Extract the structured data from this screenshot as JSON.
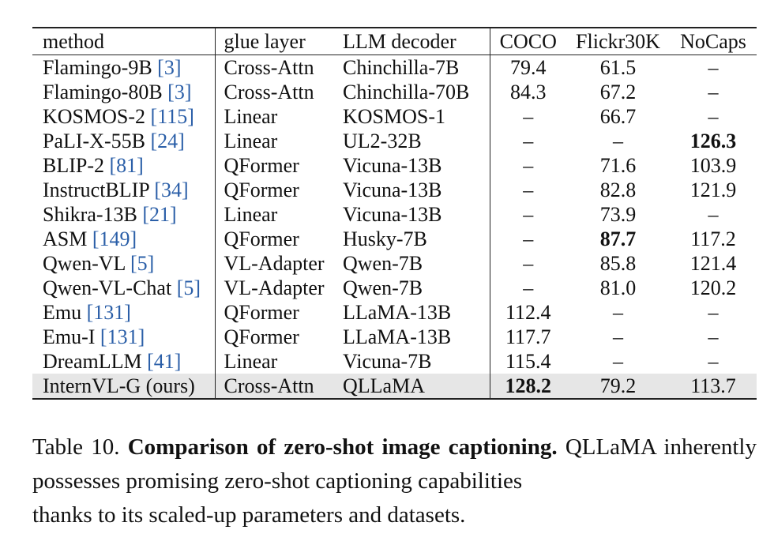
{
  "table": {
    "headers": {
      "method": "method",
      "glue_layer": "glue layer",
      "llm_decoder": "LLM decoder",
      "coco": "COCO",
      "flickr": "Flickr30K",
      "nocaps": "NoCaps"
    },
    "rows": [
      {
        "method": "Flamingo-9B",
        "ref": "[3]",
        "glue": "Cross-Attn",
        "llm": "Chinchilla-7B",
        "coco": "79.4",
        "flickr": "61.5",
        "nocaps": "–"
      },
      {
        "method": "Flamingo-80B",
        "ref": "[3]",
        "glue": "Cross-Attn",
        "llm": "Chinchilla-70B",
        "coco": "84.3",
        "flickr": "67.2",
        "nocaps": "–"
      },
      {
        "method": "KOSMOS-2",
        "ref": "[115]",
        "glue": "Linear",
        "llm": "KOSMOS-1",
        "coco": "–",
        "flickr": "66.7",
        "nocaps": "–"
      },
      {
        "method": "PaLI-X-55B",
        "ref": "[24]",
        "glue": "Linear",
        "llm": "UL2-32B",
        "coco": "–",
        "flickr": "–",
        "nocaps": "126.3"
      },
      {
        "method": "BLIP-2",
        "ref": "[81]",
        "glue": "QFormer",
        "llm": "Vicuna-13B",
        "coco": "–",
        "flickr": "71.6",
        "nocaps": "103.9"
      },
      {
        "method": "InstructBLIP",
        "ref": "[34]",
        "glue": "QFormer",
        "llm": "Vicuna-13B",
        "coco": "–",
        "flickr": "82.8",
        "nocaps": "121.9"
      },
      {
        "method": "Shikra-13B",
        "ref": "[21]",
        "glue": "Linear",
        "llm": "Vicuna-13B",
        "coco": "–",
        "flickr": "73.9",
        "nocaps": "–"
      },
      {
        "method": "ASM",
        "ref": "[149]",
        "glue": "QFormer",
        "llm": "Husky-7B",
        "coco": "–",
        "flickr": "87.7",
        "nocaps": "117.2"
      },
      {
        "method": "Qwen-VL",
        "ref": "[5]",
        "glue": "VL-Adapter",
        "llm": "Qwen-7B",
        "coco": "–",
        "flickr": "85.8",
        "nocaps": "121.4"
      },
      {
        "method": "Qwen-VL-Chat",
        "ref": "[5]",
        "glue": "VL-Adapter",
        "llm": "Qwen-7B",
        "coco": "–",
        "flickr": "81.0",
        "nocaps": "120.2"
      },
      {
        "method": "Emu",
        "ref": "[131]",
        "glue": "QFormer",
        "llm": "LLaMA-13B",
        "coco": "112.4",
        "flickr": "–",
        "nocaps": "–"
      },
      {
        "method": "Emu-I",
        "ref": "[131]",
        "glue": "QFormer",
        "llm": "LLaMA-13B",
        "coco": "117.7",
        "flickr": "–",
        "nocaps": "–"
      },
      {
        "method": "DreamLLM",
        "ref": "[41]",
        "glue": "Linear",
        "llm": "Vicuna-7B",
        "coco": "115.4",
        "flickr": "–",
        "nocaps": "–"
      },
      {
        "method": "InternVL-G (ours)",
        "ref": "",
        "glue": "Cross-Attn",
        "llm": "QLLaMA",
        "coco": "128.2",
        "flickr": "79.2",
        "nocaps": "113.7"
      }
    ]
  },
  "caption": {
    "label": "Table 10.",
    "title": "Comparison of zero-shot image captioning.",
    "body_line1": "QLLaMA inherently possesses promising zero-shot captioning capabilities",
    "body_line2": "thanks to its scaled-up parameters and datasets."
  }
}
